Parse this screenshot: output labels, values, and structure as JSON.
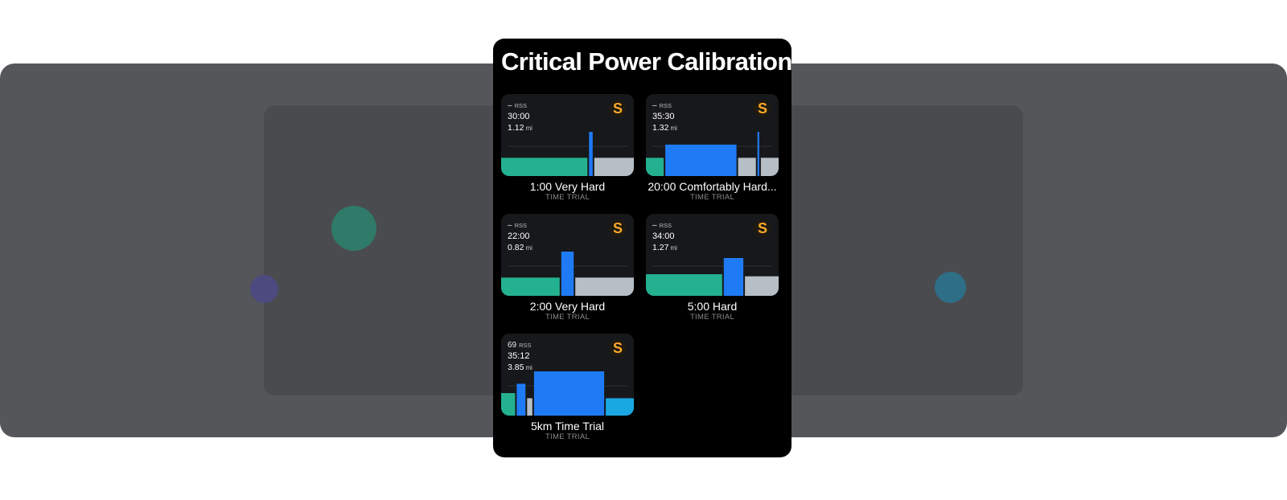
{
  "panel": {
    "title": "Critical Power Calibration"
  },
  "colors": {
    "warmup": "#23b190",
    "effort": "#1f7bf5",
    "recovery": "#b6bec6",
    "cooldown": "#1aa8e2",
    "badge": "#ffa928",
    "card_bg": "#17181b"
  },
  "workouts": [
    {
      "rss_value": "–",
      "rss_unit": "RSS",
      "duration": "30:00",
      "distance": "1.12",
      "distance_unit": "mi",
      "badge": "S",
      "name": "1:00 Very Hard",
      "type": "TIME TRIAL",
      "segments": [
        {
          "kind": "warmup",
          "length": 48,
          "intensity": 0.39
        },
        {
          "kind": "effort",
          "length": 2,
          "intensity": 1.0
        },
        {
          "kind": "recovery",
          "length": 22,
          "intensity": 0.39
        }
      ]
    },
    {
      "rss_value": "–",
      "rss_unit": "RSS",
      "duration": "35:30",
      "distance": "1.32",
      "distance_unit": "mi",
      "badge": "S",
      "name": "20:00 Comfortably Hard...",
      "type": "TIME TRIAL",
      "segments": [
        {
          "kind": "warmup",
          "length": 10,
          "intensity": 0.39
        },
        {
          "kind": "effort",
          "length": 40,
          "intensity": 0.7
        },
        {
          "kind": "recovery",
          "length": 10,
          "intensity": 0.39
        },
        {
          "kind": "effort",
          "length": 1,
          "intensity": 1.0
        },
        {
          "kind": "recovery",
          "length": 10,
          "intensity": 0.39
        }
      ]
    },
    {
      "rss_value": "–",
      "rss_unit": "RSS",
      "duration": "22:00",
      "distance": "0.82",
      "distance_unit": "mi",
      "badge": "S",
      "name": "2:00 Very Hard",
      "type": "TIME TRIAL",
      "segments": [
        {
          "kind": "warmup",
          "length": 33,
          "intensity": 0.39
        },
        {
          "kind": "effort",
          "length": 7,
          "intensity": 1.0
        },
        {
          "kind": "recovery",
          "length": 33,
          "intensity": 0.39
        }
      ]
    },
    {
      "rss_value": "–",
      "rss_unit": "RSS",
      "duration": "34:00",
      "distance": "1.27",
      "distance_unit": "mi",
      "badge": "S",
      "name": "5:00 Hard",
      "type": "TIME TRIAL",
      "segments": [
        {
          "kind": "warmup",
          "length": 43,
          "intensity": 0.47
        },
        {
          "kind": "effort",
          "length": 11,
          "intensity": 0.85
        },
        {
          "kind": "recovery",
          "length": 19,
          "intensity": 0.42
        }
      ]
    },
    {
      "rss_value": "69",
      "rss_unit": "RSS",
      "duration": "35:12",
      "distance": "3.85",
      "distance_unit": "mi",
      "badge": "S",
      "name": "5km Time Trial",
      "type": "TIME TRIAL",
      "segments": [
        {
          "kind": "warmup",
          "length": 8,
          "intensity": 0.49
        },
        {
          "kind": "effort",
          "length": 5,
          "intensity": 0.71
        },
        {
          "kind": "recovery",
          "length": 3,
          "intensity": 0.37
        },
        {
          "kind": "effort",
          "length": 40,
          "intensity": 1.0
        },
        {
          "kind": "cooldown",
          "length": 16,
          "intensity": 0.37
        }
      ]
    }
  ]
}
